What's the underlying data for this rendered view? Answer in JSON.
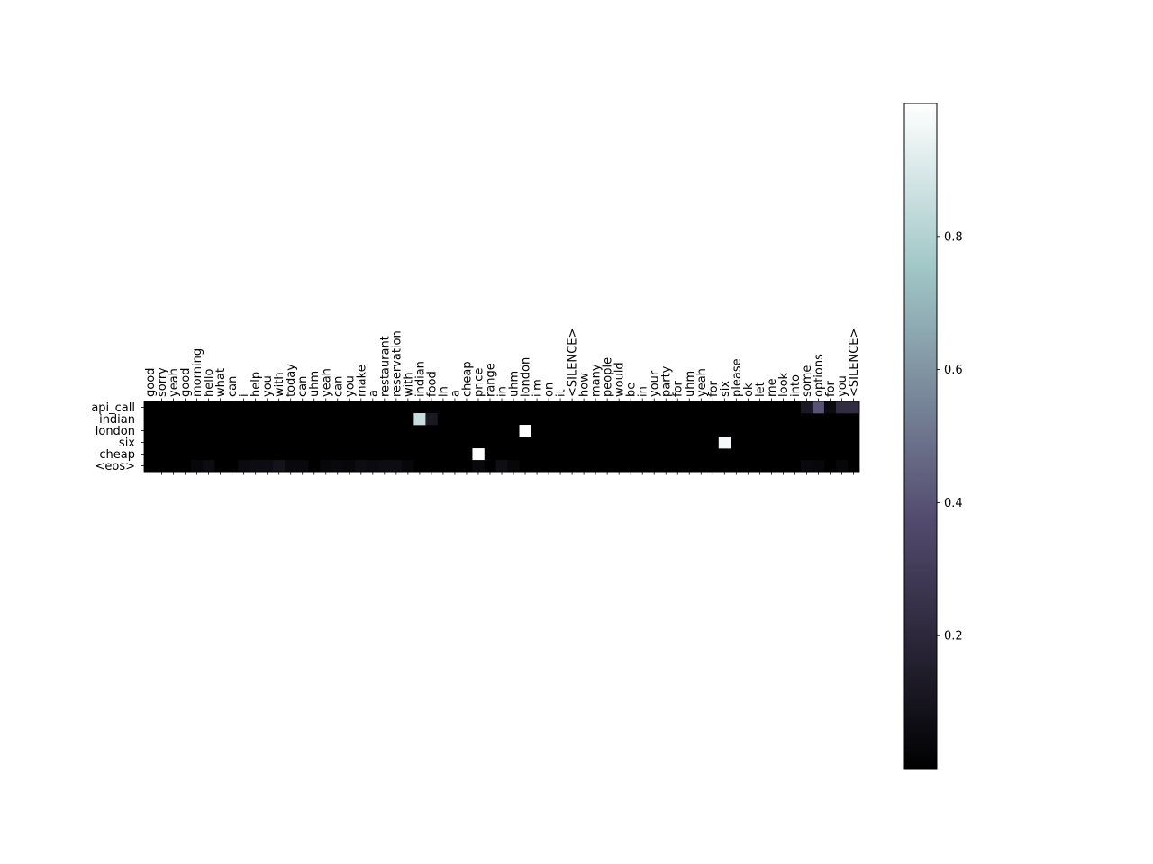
{
  "chart_data": {
    "type": "heatmap",
    "title": "",
    "xlabel": "",
    "ylabel": "",
    "x_tick_position": "top",
    "grid": false,
    "colormap": "bone",
    "color_range": [
      0,
      1
    ],
    "x_labels": [
      "good",
      "sorry",
      "yeah",
      "good",
      "morning",
      "hello",
      "what",
      "can",
      "i",
      "help",
      "you",
      "with",
      "today",
      "can",
      "uhm",
      "yeah",
      "can",
      "you",
      "make",
      "a",
      "restaurant",
      "reservation",
      "with",
      "indian",
      "food",
      "in",
      "a",
      "cheap",
      "price",
      "range",
      "in",
      "uhm",
      "london",
      "i'm",
      "on",
      "it",
      "<SILENCE>",
      "how",
      "many",
      "people",
      "would",
      "be",
      "in",
      "your",
      "party",
      "for",
      "uhm",
      "yeah",
      "for",
      "six",
      "please",
      "ok",
      "let",
      "me",
      "look",
      "into",
      "some",
      "options",
      "for",
      "you",
      "<SILENCE>"
    ],
    "y_labels": [
      "api_call",
      "indian",
      "london",
      "six",
      "cheap",
      "<eos>"
    ],
    "cells": [
      {
        "row": 0,
        "col": 56,
        "value": 0.12
      },
      {
        "row": 0,
        "col": 57,
        "value": 0.4
      },
      {
        "row": 0,
        "col": 58,
        "value": 0.05
      },
      {
        "row": 0,
        "col": 59,
        "value": 0.22
      },
      {
        "row": 0,
        "col": 60,
        "value": 0.22
      },
      {
        "row": 1,
        "col": 23,
        "value": 0.85
      },
      {
        "row": 1,
        "col": 24,
        "value": 0.12
      },
      {
        "row": 2,
        "col": 32,
        "value": 1.0
      },
      {
        "row": 3,
        "col": 49,
        "value": 0.97
      },
      {
        "row": 4,
        "col": 28,
        "value": 1.0
      },
      {
        "row": 5,
        "col": 4,
        "value": 0.03
      },
      {
        "row": 5,
        "col": 5,
        "value": 0.06
      },
      {
        "row": 5,
        "col": 8,
        "value": 0.05
      },
      {
        "row": 5,
        "col": 9,
        "value": 0.06
      },
      {
        "row": 5,
        "col": 10,
        "value": 0.06
      },
      {
        "row": 5,
        "col": 11,
        "value": 0.09
      },
      {
        "row": 5,
        "col": 12,
        "value": 0.04
      },
      {
        "row": 5,
        "col": 13,
        "value": 0.04
      },
      {
        "row": 5,
        "col": 15,
        "value": 0.03
      },
      {
        "row": 5,
        "col": 16,
        "value": 0.04
      },
      {
        "row": 5,
        "col": 17,
        "value": 0.03
      },
      {
        "row": 5,
        "col": 18,
        "value": 0.06
      },
      {
        "row": 5,
        "col": 19,
        "value": 0.05
      },
      {
        "row": 5,
        "col": 20,
        "value": 0.06
      },
      {
        "row": 5,
        "col": 21,
        "value": 0.06
      },
      {
        "row": 5,
        "col": 22,
        "value": 0.03
      },
      {
        "row": 5,
        "col": 28,
        "value": 0.04
      },
      {
        "row": 5,
        "col": 30,
        "value": 0.07
      },
      {
        "row": 5,
        "col": 31,
        "value": 0.03
      },
      {
        "row": 5,
        "col": 56,
        "value": 0.04
      },
      {
        "row": 5,
        "col": 57,
        "value": 0.03
      },
      {
        "row": 5,
        "col": 59,
        "value": 0.03
      }
    ],
    "colorbar": {
      "ticks": [
        0.2,
        0.4,
        0.6,
        0.8
      ],
      "tick_labels": [
        "0.2",
        "0.4",
        "0.6",
        "0.8"
      ],
      "range": [
        0,
        1
      ]
    }
  }
}
